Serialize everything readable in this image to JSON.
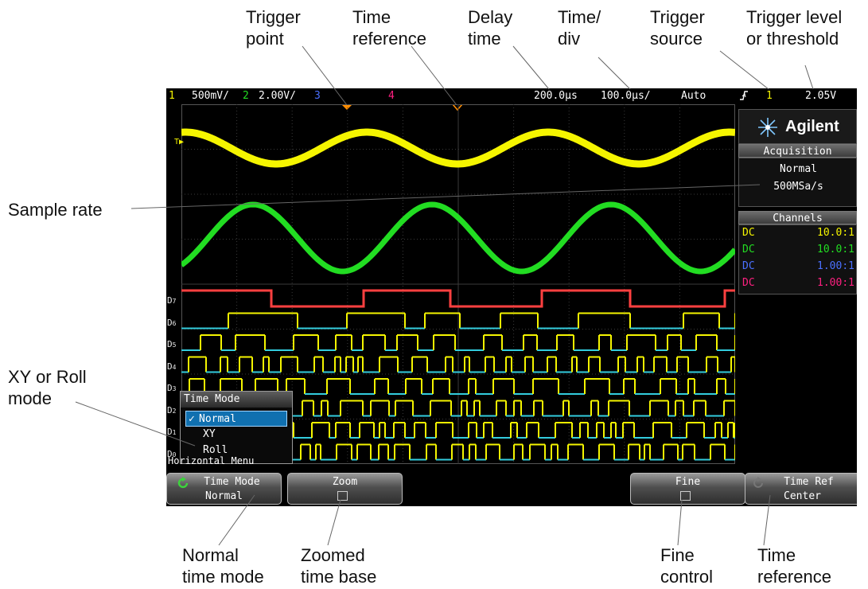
{
  "callouts": {
    "trigger_point": "Trigger\npoint",
    "time_reference_top": "Time\nreference",
    "delay_time": "Delay\ntime",
    "time_div": "Time/\ndiv",
    "trigger_source": "Trigger\nsource",
    "trigger_level": "Trigger level\nor threshold",
    "sample_rate": "Sample rate",
    "xy_roll": "XY or Roll\nmode",
    "normal_time_mode": "Normal\ntime mode",
    "zoomed_time_base": "Zoomed\ntime base",
    "fine_control": "Fine\ncontrol",
    "time_reference_bottom": "Time\nreference"
  },
  "status_bar": {
    "ch1_num": "1",
    "ch1_scale": "500mV/",
    "ch2_num": "2",
    "ch2_scale": "2.00V/",
    "ch3_num": "3",
    "ch4_num": "4",
    "delay": "200.0µs",
    "timediv": "100.0µs/",
    "mode": "Auto",
    "slope_icon": "rising-edge-icon",
    "trig_source": "1",
    "trig_level": "2.05V"
  },
  "brand": {
    "name": "Agilent",
    "logo_icon": "agilent-spark-icon"
  },
  "acquisition": {
    "header": "Acquisition",
    "mode": "Normal",
    "rate": "500MSa/s"
  },
  "channels": {
    "header": "Channels",
    "rows": [
      {
        "coupling": "DC",
        "probe": "10.0:1",
        "color": "#f5f500"
      },
      {
        "coupling": "DC",
        "probe": "10.0:1",
        "color": "#22dd22"
      },
      {
        "coupling": "DC",
        "probe": "1.00:1",
        "color": "#4a70ff"
      },
      {
        "coupling": "DC",
        "probe": "1.00:1",
        "color": "#ff2080"
      }
    ]
  },
  "time_mode_menu": {
    "title": "Time Mode",
    "options": [
      "Normal",
      "XY",
      "Roll"
    ],
    "selected": "Normal",
    "check_icon": "checkmark-icon"
  },
  "menu_label": "Horizontal Menu",
  "softkeys": [
    {
      "line1": "Time Mode",
      "line2": "Normal",
      "icon": "rotate-knob-icon"
    },
    {
      "line1": "Zoom",
      "line2": ""
    },
    {
      "line1": "Fine",
      "line2": ""
    },
    {
      "line1": "Time Ref",
      "line2": "Center",
      "icon": "rotate-knob-icon"
    }
  ],
  "digital_labels": [
    "D7",
    "D6",
    "D5",
    "D4",
    "D3",
    "D2",
    "D1",
    "D0"
  ],
  "colors": {
    "ch1": "#f5f500",
    "ch2": "#22dd22",
    "ch3": "#4a70ff",
    "ch4": "#ff2080",
    "digital_high": "#f5f500",
    "digital_low": "#33ccdd",
    "d7": "#ff4040",
    "trigger_marker": "#ff8c00"
  }
}
